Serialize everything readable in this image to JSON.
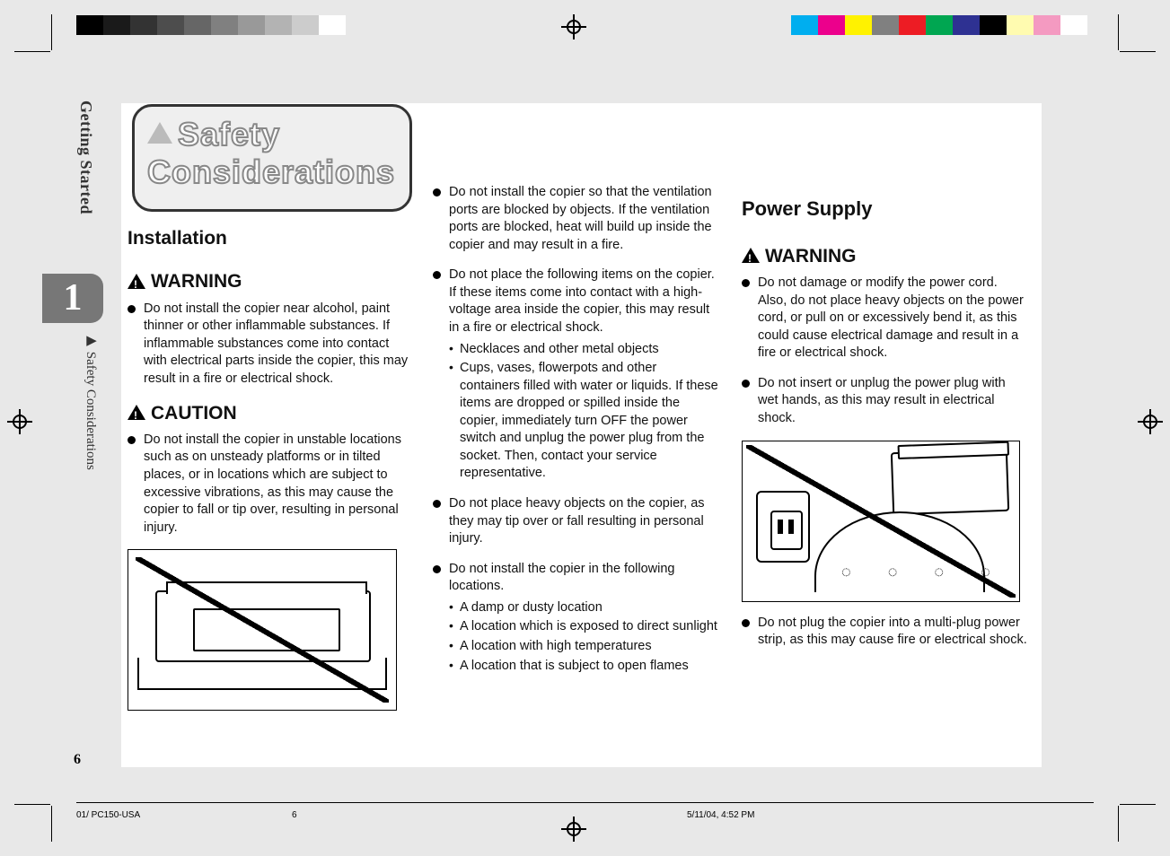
{
  "grey_steps": [
    "#000000",
    "#1a1a1a",
    "#333333",
    "#4d4d4d",
    "#666666",
    "#808080",
    "#999999",
    "#b3b3b3",
    "#cccccc",
    "#ffffff"
  ],
  "color_bar": [
    "#00aeef",
    "#ec008c",
    "#fff200",
    "#808080",
    "#ed1c24",
    "#00a651",
    "#2e3192",
    "#000000",
    "#fffbb0",
    "#f49ac1",
    "#ffffff"
  ],
  "sidebar": {
    "chapter": "Getting Started",
    "chapter_num": "1",
    "section_label": "Safety Considerations",
    "page_num": "6"
  },
  "title": {
    "line1": "Safety",
    "line2": "Considerations"
  },
  "col1": {
    "h_installation": "Installation",
    "h_warning": "WARNING",
    "warn1": "Do not install the copier near alcohol, paint thinner or other inflammable substances. If inflammable substances come into contact with electrical parts inside the copier, this may result in a fire or electrical shock.",
    "h_caution": "CAUTION",
    "caution1": "Do not install the copier in unstable locations such as on unsteady platforms or in tilted places, or in locations which are subject to excessive vibrations, as this may cause the copier to fall or tip over, resulting in personal injury."
  },
  "col2": {
    "b1": "Do not install the copier so that the ventilation ports are blocked by objects.  If the ventilation ports are blocked, heat will build up inside the copier and may result in a fire.",
    "b2": "Do not place the following items on the copier. If these items come into contact with a high-voltage area inside the copier, this may result in a fire or electrical shock.",
    "b2_sub1": "Necklaces and other metal objects",
    "b2_sub2": "Cups, vases, flowerpots and other containers filled with water or liquids. If these items are dropped or spilled inside the copier, immediately turn OFF the power switch and unplug the power plug from the socket. Then, contact your service representative.",
    "b3": "Do not place heavy objects on the copier, as they may tip over or fall resulting in personal injury.",
    "b4": "Do not install the copier in the following locations.",
    "b4_sub1": "A damp or dusty location",
    "b4_sub2": "A location which is exposed to direct sunlight",
    "b4_sub3": "A location with high temperatures",
    "b4_sub4": "A location that is subject to open flames"
  },
  "col3": {
    "h_power": "Power Supply",
    "h_warning": "WARNING",
    "b1": "Do not damage or modify the power cord. Also, do not place heavy objects on the power cord, or pull on or excessively bend it, as this could cause electrical damage and result in a fire or electrical shock.",
    "b2": "Do not insert or unplug the power plug with wet hands, as this may result in electrical shock.",
    "b3": "Do not plug the copier into a multi-plug power strip, as this may cause fire or electrical shock."
  },
  "footer": {
    "f1": "01/ PC150-USA",
    "f2": "6",
    "f3": "5/11/04, 4:52 PM"
  }
}
